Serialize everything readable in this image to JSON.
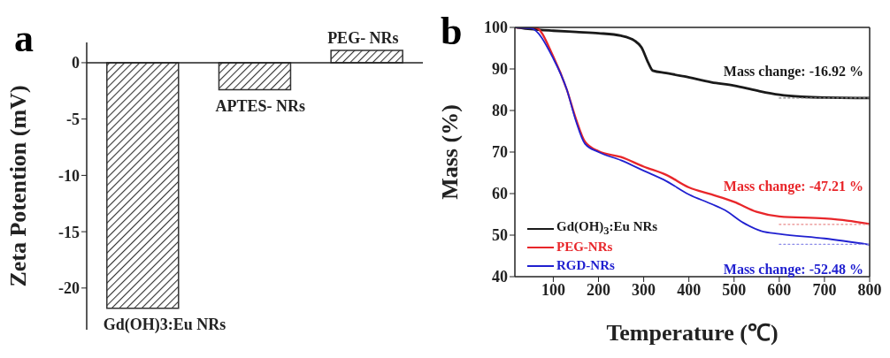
{
  "chart_data": [
    {
      "type": "bar",
      "title": "a",
      "ylabel": "Zeta Potention (mV)",
      "categories": [
        "Gd(OH)3:Eu NRs",
        "APTES- NRs",
        "PEG- NRs"
      ],
      "values": [
        -21.8,
        -2.4,
        1.1
      ],
      "color": "#333333",
      "ylim": [
        -23.7,
        1.8
      ],
      "yticks": [
        -20,
        -15,
        -10,
        -5,
        0
      ],
      "tick_labels": "y",
      "ref_lines": [
        {
          "axis": "y",
          "value": 0,
          "color": "#222222"
        }
      ]
    },
    {
      "type": "line",
      "title": "b",
      "xlabel": "Temperature (℃)",
      "ylabel": "Mass (%)",
      "xlim": [
        15,
        800
      ],
      "xticks": [
        100,
        200,
        300,
        400,
        500,
        600,
        700,
        800
      ],
      "ylim": [
        40,
        100
      ],
      "yticks": [
        40,
        50,
        60,
        70,
        80,
        90,
        100
      ],
      "grid": false,
      "legend": "bottom left",
      "marker": "none",
      "series": [
        {
          "name": "Gd(OH)$_{3}$:Eu NRs",
          "color": "#1a1a1a",
          "x": [
            20,
            50,
            100,
            150,
            200,
            250,
            280,
            295,
            310,
            320,
            350,
            390,
            450,
            500,
            550,
            600,
            650,
            700,
            800
          ],
          "values": [
            100,
            99.6,
            99.2,
            98.9,
            98.6,
            98.0,
            96.8,
            95.2,
            91.5,
            89.6,
            89.0,
            88.2,
            86.8,
            86.0,
            84.8,
            83.8,
            83.3,
            83.1,
            83.0
          ]
        },
        {
          "name": "PEG-NRs",
          "color": "#e8262a",
          "x": [
            15,
            60,
            100,
            130,
            150,
            170,
            200,
            250,
            300,
            350,
            400,
            450,
            500,
            550,
            600,
            700,
            750,
            800
          ],
          "values": [
            100,
            100,
            93,
            85,
            78,
            72.5,
            70.2,
            68.8,
            66.5,
            64.5,
            61.5,
            59.8,
            58,
            55.6,
            54.5,
            54,
            53.5,
            52.7
          ]
        },
        {
          "name": "RGD-NRs",
          "color": "#2020d0",
          "x": [
            15,
            50,
            100,
            130,
            150,
            170,
            200,
            250,
            300,
            350,
            400,
            450,
            480,
            520,
            560,
            600,
            700,
            800
          ],
          "values": [
            100,
            99.8,
            92.5,
            85,
            77.5,
            72,
            70,
            68,
            65.5,
            63,
            59.8,
            57.5,
            56,
            53,
            51,
            50.3,
            49.2,
            47.7
          ]
        },
        {
          "color": "#888888",
          "x": [
            600,
            800
          ],
          "values": [
            83.0,
            83.0
          ],
          "line_style": "dotted"
        },
        {
          "color": "#e88a8a",
          "x": [
            600,
            800
          ],
          "values": [
            52.6,
            52.6
          ],
          "line_style": "dotted"
        },
        {
          "color": "#8a8ae8",
          "x": [
            600,
            800
          ],
          "values": [
            47.8,
            47.8
          ],
          "line_style": "dotted"
        }
      ],
      "annotations": [
        "Mass change: -16.92 %",
        "Mass change: -47.21 %",
        "Mass change: -52.48 %"
      ]
    }
  ]
}
